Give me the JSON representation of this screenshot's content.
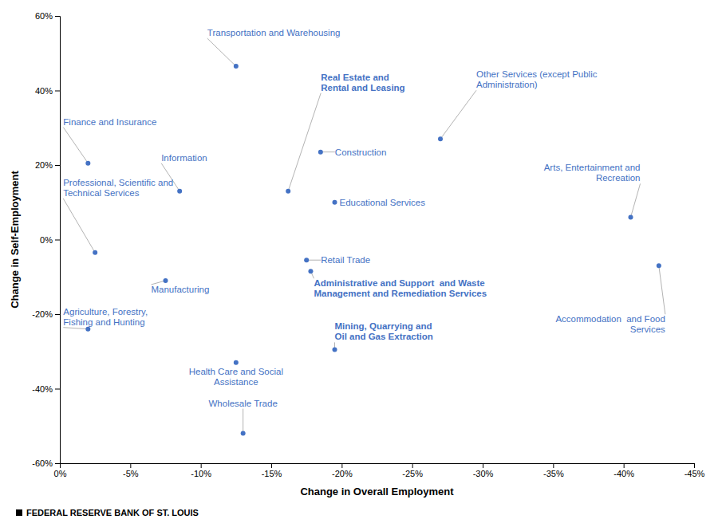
{
  "chart_data": {
    "type": "scatter",
    "xlabel": "Change in Overall Employment",
    "ylabel": "Change in Self-Employment",
    "xlim": [
      0,
      -45
    ],
    "ylim": [
      -60,
      60
    ],
    "xticks": [
      {
        "value": 0,
        "label": "0%"
      },
      {
        "value": -5,
        "label": "-5%"
      },
      {
        "value": -10,
        "label": "-10%"
      },
      {
        "value": -15,
        "label": "-15%"
      },
      {
        "value": -20,
        "label": "-20%"
      },
      {
        "value": -25,
        "label": "-25%"
      },
      {
        "value": -30,
        "label": "-30%"
      },
      {
        "value": -35,
        "label": "-35%"
      },
      {
        "value": -40,
        "label": "-40%"
      },
      {
        "value": -45,
        "label": "-45%"
      }
    ],
    "yticks": [
      {
        "value": -60,
        "label": "-60%"
      },
      {
        "value": -40,
        "label": "-40%"
      },
      {
        "value": -20,
        "label": "-20%"
      },
      {
        "value": 0,
        "label": "0%"
      },
      {
        "value": 20,
        "label": "20%"
      },
      {
        "value": 40,
        "label": "40%"
      },
      {
        "value": 60,
        "label": "60%"
      }
    ],
    "color": "#4472C4",
    "footer": "FEDERAL RESERVE BANK OF ST. LOUIS",
    "x": [
      -2.0,
      -8.5,
      -2.5,
      -12.5,
      -16.2,
      -18.5,
      -19.5,
      -27.0,
      -17.5,
      -17.8,
      -2.0,
      -7.5,
      -12.5,
      -13.0,
      -19.5,
      -40.5,
      -42.5
    ],
    "values": [
      20.5,
      13.0,
      -3.5,
      46.5,
      13.0,
      23.5,
      10.0,
      27.0,
      -5.5,
      -8.5,
      -24.0,
      -11.0,
      -33.0,
      -52.0,
      -29.5,
      6.0,
      -7.0
    ],
    "annotations": [
      "Finance and Insurance",
      "Information",
      "Professional, Scientific and\nTechnical Services",
      "Transportation and Warehousing",
      "Real Estate and\nRental and Leasing",
      "Construction",
      "Educational Services",
      "Other Services (except Public\nAdministration)",
      "Retail Trade",
      "Administrative and Support  and Waste\nManagement and Remediation Services",
      "Agriculture, Forestry,\nFishing and Hunting",
      "Manufacturing",
      "Health Care and Social\nAssistance",
      "Wholesale Trade",
      "Mining, Quarrying and\nOil and Gas Extraction",
      "Arts, Entertainment and\nRecreation",
      "Accommodation  and Food\nServices"
    ]
  }
}
